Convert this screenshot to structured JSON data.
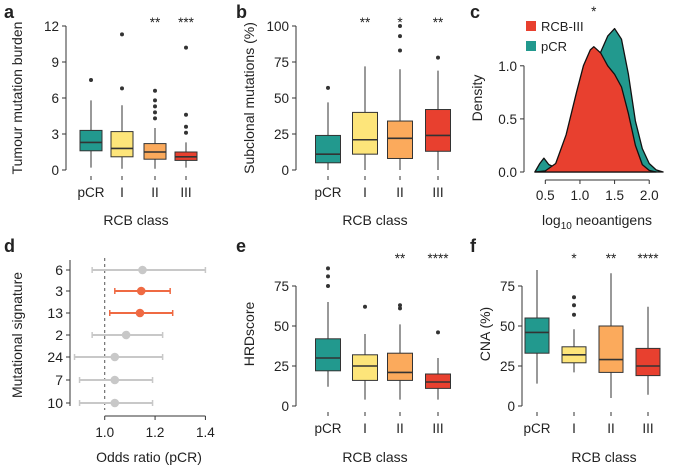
{
  "colors": {
    "pCR": "#22998e",
    "I": "#fde57a",
    "II": "#fbaa5c",
    "III": "#e8402f",
    "highlight": "#ef6a43",
    "neutral": "#c8c8c8",
    "axis": "#333333"
  },
  "chart_data": [
    {
      "panel": "a",
      "type": "box",
      "ylabel": "Tumour mutation burden",
      "xlabel": "RCB class",
      "ylim": [
        0,
        12
      ],
      "yticks": [
        0,
        3,
        6,
        9,
        12
      ],
      "categories": [
        "pCR",
        "I",
        "II",
        "III"
      ],
      "significance": [
        "",
        "",
        "**",
        "***"
      ],
      "boxes": [
        {
          "q1": 1.6,
          "median": 2.3,
          "q3": 3.3,
          "wlo": 0.2,
          "whi": 5.8,
          "outliers": [
            7.5
          ]
        },
        {
          "q1": 1.1,
          "median": 1.8,
          "q3": 3.2,
          "wlo": 0.1,
          "whi": 5.4,
          "outliers": [
            6.8,
            11.3
          ]
        },
        {
          "q1": 0.9,
          "median": 1.5,
          "q3": 2.2,
          "wlo": 0.1,
          "whi": 3.5,
          "outliers": [
            4.3,
            4.8,
            5.3,
            5.8,
            6.6
          ]
        },
        {
          "q1": 0.8,
          "median": 1.1,
          "q3": 1.5,
          "wlo": 0.2,
          "whi": 2.3,
          "outliers": [
            3.1,
            3.6,
            4.6,
            10.2
          ]
        }
      ]
    },
    {
      "panel": "b",
      "type": "box",
      "ylabel": "Subclonal mutations (%)",
      "xlabel": "RCB class",
      "ylim": [
        0,
        100
      ],
      "yticks": [
        0,
        25,
        50,
        75,
        100
      ],
      "categories": [
        "pCR",
        "I",
        "II",
        "III"
      ],
      "significance": [
        "",
        "**",
        "*",
        "**"
      ],
      "boxes": [
        {
          "q1": 5,
          "median": 11,
          "q3": 24,
          "wlo": 0,
          "whi": 47,
          "outliers": [
            57
          ]
        },
        {
          "q1": 11,
          "median": 21,
          "q3": 40,
          "wlo": 0,
          "whi": 72,
          "outliers": []
        },
        {
          "q1": 8,
          "median": 22,
          "q3": 34,
          "wlo": 0,
          "whi": 70,
          "outliers": [
            83,
            93,
            100
          ]
        },
        {
          "q1": 13,
          "median": 24,
          "q3": 42,
          "wlo": 0,
          "whi": 69,
          "outliers": [
            78
          ]
        }
      ]
    },
    {
      "panel": "c",
      "type": "density",
      "ylabel": "Density",
      "xlabel": "log10 neoantigens",
      "xlabel_parts": [
        "log",
        "10",
        " neoantigens"
      ],
      "xlim": [
        0.25,
        2.3
      ],
      "ylim": [
        0,
        1.45
      ],
      "xticks": [
        0.5,
        1.0,
        1.5,
        2.0
      ],
      "xtick_labels": [
        "0.5",
        "1.0",
        "1.5",
        "2.0"
      ],
      "yticks": [
        0.0,
        0.5,
        1.0
      ],
      "ytick_labels": [
        "0.0",
        "0.5",
        "1.0"
      ],
      "significance": "*",
      "series": [
        {
          "name": "RCB-III",
          "x": [
            0.35,
            0.5,
            0.65,
            0.8,
            0.95,
            1.05,
            1.15,
            1.2,
            1.3,
            1.4,
            1.5,
            1.6,
            1.7,
            1.8,
            1.9,
            2.0,
            2.1
          ],
          "y": [
            0,
            0.01,
            0.08,
            0.35,
            0.75,
            1.0,
            1.15,
            1.18,
            1.12,
            1.0,
            0.92,
            0.8,
            0.55,
            0.25,
            0.07,
            0.015,
            0
          ]
        },
        {
          "name": "pCR",
          "x": [
            0.35,
            0.42,
            0.48,
            0.55,
            0.62,
            0.72,
            0.85,
            1.0,
            1.15,
            1.28,
            1.4,
            1.5,
            1.6,
            1.7,
            1.8,
            1.9,
            2.0,
            2.1,
            2.2
          ],
          "y": [
            0,
            0.08,
            0.13,
            0.07,
            0.05,
            0.12,
            0.35,
            0.7,
            0.95,
            1.1,
            1.28,
            1.35,
            1.25,
            0.92,
            0.48,
            0.22,
            0.08,
            0.02,
            0
          ]
        }
      ]
    },
    {
      "panel": "d",
      "type": "forest",
      "ylabel": "Mutational signature",
      "xlabel": "Odds ratio (pCR)",
      "xlim": [
        0.87,
        1.45
      ],
      "xticks": [
        1.0,
        1.2,
        1.4
      ],
      "xtick_labels": [
        "1.0",
        "1.2",
        "1.4"
      ],
      "reference": 1.0,
      "rows": [
        {
          "signature": "6",
          "or": 1.15,
          "lo": 0.95,
          "hi": 1.4,
          "highlight": false
        },
        {
          "signature": "3",
          "or": 1.145,
          "lo": 1.04,
          "hi": 1.26,
          "highlight": true
        },
        {
          "signature": "13",
          "or": 1.14,
          "lo": 1.02,
          "hi": 1.27,
          "highlight": true
        },
        {
          "signature": "2",
          "or": 1.085,
          "lo": 0.95,
          "hi": 1.23,
          "highlight": false
        },
        {
          "signature": "24",
          "or": 1.04,
          "lo": 0.88,
          "hi": 1.23,
          "highlight": false
        },
        {
          "signature": "7",
          "or": 1.04,
          "lo": 0.9,
          "hi": 1.19,
          "highlight": false
        },
        {
          "signature": "10",
          "or": 1.04,
          "lo": 0.9,
          "hi": 1.19,
          "highlight": false
        }
      ]
    },
    {
      "panel": "e",
      "type": "box",
      "ylabel": "HRDscore",
      "xlabel": "RCB class",
      "ylim": [
        0,
        90
      ],
      "yticks": [
        0,
        25,
        50,
        75
      ],
      "categories": [
        "pCR",
        "I",
        "II",
        "III"
      ],
      "significance": [
        "",
        "",
        "**",
        "****"
      ],
      "boxes": [
        {
          "q1": 22,
          "median": 30,
          "q3": 42,
          "wlo": 12,
          "whi": 65,
          "outliers": [
            75,
            81,
            86
          ]
        },
        {
          "q1": 16,
          "median": 25,
          "q3": 32,
          "wlo": 4,
          "whi": 45,
          "outliers": [
            62
          ]
        },
        {
          "q1": 16,
          "median": 21,
          "q3": 33,
          "wlo": 4,
          "whi": 51,
          "outliers": [
            61,
            63
          ]
        },
        {
          "q1": 11,
          "median": 15,
          "q3": 20,
          "wlo": 4,
          "whi": 30,
          "outliers": [
            46
          ]
        }
      ]
    },
    {
      "panel": "f",
      "type": "box",
      "ylabel": "CNA (%)",
      "xlabel": "RCB class",
      "ylim": [
        0,
        90
      ],
      "yticks": [
        0,
        25,
        50,
        75
      ],
      "categories": [
        "pCR",
        "I",
        "II",
        "III"
      ],
      "significance": [
        "",
        "*",
        "**",
        "****"
      ],
      "boxes": [
        {
          "q1": 33,
          "median": 46,
          "q3": 55,
          "wlo": 14,
          "whi": 85,
          "outliers": []
        },
        {
          "q1": 27,
          "median": 32,
          "q3": 37,
          "wlo": 21,
          "whi": 48,
          "outliers": [
            57,
            63,
            68
          ]
        },
        {
          "q1": 21,
          "median": 29,
          "q3": 50,
          "wlo": 5,
          "whi": 83,
          "outliers": []
        },
        {
          "q1": 19,
          "median": 25,
          "q3": 36,
          "wlo": 7,
          "whi": 62,
          "outliers": []
        }
      ]
    }
  ]
}
